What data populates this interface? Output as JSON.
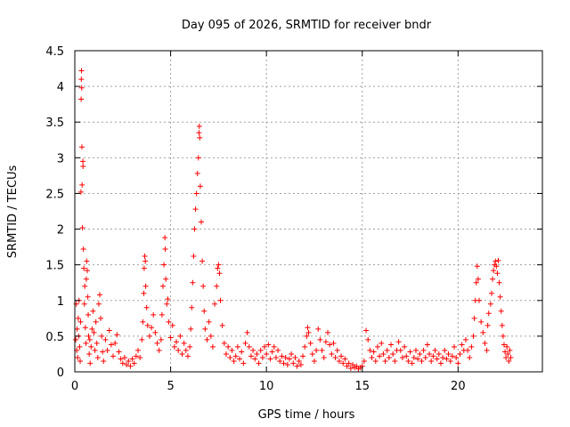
{
  "chart_data": {
    "type": "scatter",
    "title": "Day 095 of 2026, SRMTID for receiver bndr",
    "xlabel": "GPS time / hours",
    "ylabel": "SRMTID / TECUs",
    "xlim": [
      0,
      24.4
    ],
    "ylim": [
      0,
      4.5
    ],
    "xticks": [
      0,
      5,
      10,
      15,
      20
    ],
    "xtick_labels": [
      "0",
      "5",
      "10",
      "15",
      "20"
    ],
    "yticks": [
      0,
      0.5,
      1,
      1.5,
      2,
      2.5,
      3,
      3.5,
      4,
      4.5
    ],
    "ytick_labels": [
      "0",
      "0.5",
      "1",
      "1.5",
      "2",
      "2.5",
      "3",
      "3.5",
      "4",
      "4.5"
    ],
    "grid": true,
    "marker": "+",
    "color": "#ff0000",
    "series": [
      {
        "name": "SRMTID",
        "points": [
          [
            0.05,
            0.45
          ],
          [
            0.08,
            0.95
          ],
          [
            0.1,
            0.3
          ],
          [
            0.12,
            0.6
          ],
          [
            0.15,
            0.2
          ],
          [
            0.18,
            0.75
          ],
          [
            0.2,
            0.5
          ],
          [
            0.22,
            1.0
          ],
          [
            0.25,
            0.35
          ],
          [
            0.28,
            0.15
          ],
          [
            0.3,
            0.7
          ],
          [
            0.32,
            2.52
          ],
          [
            0.33,
            3.82
          ],
          [
            0.34,
            4.1
          ],
          [
            0.35,
            4.22
          ],
          [
            0.36,
            3.98
          ],
          [
            0.37,
            3.15
          ],
          [
            0.38,
            2.62
          ],
          [
            0.4,
            2.02
          ],
          [
            0.42,
            2.95
          ],
          [
            0.43,
            2.88
          ],
          [
            0.45,
            1.72
          ],
          [
            0.47,
            1.45
          ],
          [
            0.5,
            0.95
          ],
          [
            0.52,
            1.2
          ],
          [
            0.55,
            0.62
          ],
          [
            0.58,
            0.4
          ],
          [
            0.6,
            1.3
          ],
          [
            0.62,
            1.55
          ],
          [
            0.65,
            1.42
          ],
          [
            0.68,
            1.05
          ],
          [
            0.7,
            0.8
          ],
          [
            0.72,
            0.5
          ],
          [
            0.75,
            0.25
          ],
          [
            0.78,
            0.45
          ],
          [
            0.8,
            0.12
          ],
          [
            0.85,
            0.35
          ],
          [
            0.9,
            0.6
          ],
          [
            0.95,
            0.85
          ],
          [
            1.0,
            0.55
          ],
          [
            1.05,
            0.3
          ],
          [
            1.1,
            0.7
          ],
          [
            1.15,
            0.4
          ],
          [
            1.2,
            0.2
          ],
          [
            1.25,
            0.95
          ],
          [
            1.3,
            1.08
          ],
          [
            1.35,
            0.75
          ],
          [
            1.4,
            0.5
          ],
          [
            1.45,
            0.28
          ],
          [
            1.5,
            0.15
          ],
          [
            1.6,
            0.45
          ],
          [
            1.7,
            0.3
          ],
          [
            1.8,
            0.58
          ],
          [
            1.9,
            0.38
          ],
          [
            2.0,
            0.22
          ],
          [
            2.1,
            0.4
          ],
          [
            2.2,
            0.52
          ],
          [
            2.3,
            0.28
          ],
          [
            2.4,
            0.18
          ],
          [
            2.5,
            0.12
          ],
          [
            2.6,
            0.2
          ],
          [
            2.7,
            0.1
          ],
          [
            2.8,
            0.15
          ],
          [
            2.9,
            0.08
          ],
          [
            3.0,
            0.18
          ],
          [
            3.1,
            0.12
          ],
          [
            3.2,
            0.22
          ],
          [
            3.3,
            0.3
          ],
          [
            3.4,
            0.2
          ],
          [
            3.5,
            0.45
          ],
          [
            3.55,
            0.7
          ],
          [
            3.6,
            1.1
          ],
          [
            3.62,
            1.45
          ],
          [
            3.65,
            1.62
          ],
          [
            3.68,
            1.55
          ],
          [
            3.7,
            1.2
          ],
          [
            3.75,
            0.9
          ],
          [
            3.8,
            0.65
          ],
          [
            3.9,
            0.5
          ],
          [
            4.0,
            0.62
          ],
          [
            4.1,
            0.8
          ],
          [
            4.2,
            0.55
          ],
          [
            4.3,
            0.4
          ],
          [
            4.4,
            0.3
          ],
          [
            4.5,
            0.45
          ],
          [
            4.55,
            0.8
          ],
          [
            4.6,
            1.2
          ],
          [
            4.65,
            1.5
          ],
          [
            4.7,
            1.88
          ],
          [
            4.72,
            1.72
          ],
          [
            4.75,
            1.3
          ],
          [
            4.8,
            0.95
          ],
          [
            4.85,
            1.02
          ],
          [
            4.9,
            0.7
          ],
          [
            5.0,
            0.48
          ],
          [
            5.1,
            0.65
          ],
          [
            5.2,
            0.35
          ],
          [
            5.3,
            0.42
          ],
          [
            5.4,
            0.3
          ],
          [
            5.5,
            0.5
          ],
          [
            5.6,
            0.25
          ],
          [
            5.7,
            0.4
          ],
          [
            5.8,
            0.3
          ],
          [
            5.9,
            0.22
          ],
          [
            6.0,
            0.35
          ],
          [
            6.05,
            0.6
          ],
          [
            6.1,
            0.9
          ],
          [
            6.15,
            1.25
          ],
          [
            6.2,
            1.62
          ],
          [
            6.25,
            2.0
          ],
          [
            6.3,
            2.28
          ],
          [
            6.35,
            2.5
          ],
          [
            6.4,
            2.78
          ],
          [
            6.45,
            3.0
          ],
          [
            6.48,
            3.35
          ],
          [
            6.5,
            3.44
          ],
          [
            6.52,
            3.28
          ],
          [
            6.55,
            2.6
          ],
          [
            6.6,
            2.1
          ],
          [
            6.65,
            1.55
          ],
          [
            6.7,
            1.2
          ],
          [
            6.75,
            0.85
          ],
          [
            6.8,
            0.6
          ],
          [
            6.9,
            0.45
          ],
          [
            7.0,
            0.7
          ],
          [
            7.1,
            0.5
          ],
          [
            7.2,
            0.35
          ],
          [
            7.3,
            0.95
          ],
          [
            7.4,
            1.2
          ],
          [
            7.45,
            1.45
          ],
          [
            7.5,
            1.5
          ],
          [
            7.55,
            1.38
          ],
          [
            7.6,
            1.0
          ],
          [
            7.7,
            0.65
          ],
          [
            7.8,
            0.4
          ],
          [
            7.9,
            0.25
          ],
          [
            8.0,
            0.35
          ],
          [
            8.1,
            0.2
          ],
          [
            8.2,
            0.3
          ],
          [
            8.3,
            0.15
          ],
          [
            8.4,
            0.22
          ],
          [
            8.5,
            0.35
          ],
          [
            8.6,
            0.18
          ],
          [
            8.7,
            0.28
          ],
          [
            8.8,
            0.12
          ],
          [
            8.9,
            0.4
          ],
          [
            9.0,
            0.55
          ],
          [
            9.1,
            0.35
          ],
          [
            9.2,
            0.22
          ],
          [
            9.3,
            0.3
          ],
          [
            9.4,
            0.18
          ],
          [
            9.5,
            0.25
          ],
          [
            9.6,
            0.12
          ],
          [
            9.7,
            0.3
          ],
          [
            9.8,
            0.2
          ],
          [
            9.9,
            0.35
          ],
          [
            10.0,
            0.25
          ],
          [
            10.1,
            0.38
          ],
          [
            10.2,
            0.18
          ],
          [
            10.3,
            0.28
          ],
          [
            10.4,
            0.35
          ],
          [
            10.5,
            0.2
          ],
          [
            10.6,
            0.3
          ],
          [
            10.7,
            0.15
          ],
          [
            10.8,
            0.22
          ],
          [
            10.9,
            0.12
          ],
          [
            11.0,
            0.2
          ],
          [
            11.1,
            0.1
          ],
          [
            11.2,
            0.18
          ],
          [
            11.3,
            0.25
          ],
          [
            11.4,
            0.12
          ],
          [
            11.5,
            0.2
          ],
          [
            11.6,
            0.08
          ],
          [
            11.7,
            0.15
          ],
          [
            11.8,
            0.1
          ],
          [
            11.9,
            0.22
          ],
          [
            12.0,
            0.35
          ],
          [
            12.1,
            0.5
          ],
          [
            12.15,
            0.62
          ],
          [
            12.2,
            0.55
          ],
          [
            12.3,
            0.4
          ],
          [
            12.4,
            0.25
          ],
          [
            12.5,
            0.15
          ],
          [
            12.6,
            0.3
          ],
          [
            12.7,
            0.6
          ],
          [
            12.8,
            0.45
          ],
          [
            12.9,
            0.3
          ],
          [
            13.0,
            0.2
          ],
          [
            13.1,
            0.42
          ],
          [
            13.2,
            0.55
          ],
          [
            13.3,
            0.38
          ],
          [
            13.4,
            0.25
          ],
          [
            13.5,
            0.4
          ],
          [
            13.6,
            0.2
          ],
          [
            13.7,
            0.3
          ],
          [
            13.8,
            0.15
          ],
          [
            13.9,
            0.22
          ],
          [
            14.0,
            0.12
          ],
          [
            14.1,
            0.18
          ],
          [
            14.2,
            0.08
          ],
          [
            14.3,
            0.12
          ],
          [
            14.4,
            0.05
          ],
          [
            14.5,
            0.1
          ],
          [
            14.6,
            0.06
          ],
          [
            14.7,
            0.08
          ],
          [
            14.8,
            0.04
          ],
          [
            14.9,
            0.06
          ],
          [
            15.0,
            0.08
          ],
          [
            15.1,
            0.15
          ],
          [
            15.2,
            0.58
          ],
          [
            15.3,
            0.45
          ],
          [
            15.4,
            0.3
          ],
          [
            15.5,
            0.2
          ],
          [
            15.6,
            0.28
          ],
          [
            15.7,
            0.15
          ],
          [
            15.8,
            0.35
          ],
          [
            15.9,
            0.22
          ],
          [
            16.0,
            0.4
          ],
          [
            16.1,
            0.25
          ],
          [
            16.2,
            0.15
          ],
          [
            16.3,
            0.3
          ],
          [
            16.4,
            0.2
          ],
          [
            16.5,
            0.38
          ],
          [
            16.6,
            0.25
          ],
          [
            16.7,
            0.15
          ],
          [
            16.8,
            0.3
          ],
          [
            16.9,
            0.42
          ],
          [
            17.0,
            0.3
          ],
          [
            17.1,
            0.2
          ],
          [
            17.2,
            0.35
          ],
          [
            17.3,
            0.22
          ],
          [
            17.4,
            0.15
          ],
          [
            17.5,
            0.28
          ],
          [
            17.6,
            0.12
          ],
          [
            17.7,
            0.2
          ],
          [
            17.8,
            0.3
          ],
          [
            17.9,
            0.18
          ],
          [
            18.0,
            0.25
          ],
          [
            18.1,
            0.15
          ],
          [
            18.2,
            0.3
          ],
          [
            18.3,
            0.2
          ],
          [
            18.4,
            0.38
          ],
          [
            18.5,
            0.25
          ],
          [
            18.6,
            0.15
          ],
          [
            18.7,
            0.22
          ],
          [
            18.8,
            0.3
          ],
          [
            18.9,
            0.18
          ],
          [
            19.0,
            0.25
          ],
          [
            19.1,
            0.12
          ],
          [
            19.2,
            0.2
          ],
          [
            19.3,
            0.3
          ],
          [
            19.4,
            0.18
          ],
          [
            19.5,
            0.25
          ],
          [
            19.6,
            0.15
          ],
          [
            19.7,
            0.22
          ],
          [
            19.8,
            0.35
          ],
          [
            19.9,
            0.2
          ],
          [
            20.0,
            0.12
          ],
          [
            20.1,
            0.25
          ],
          [
            20.2,
            0.38
          ],
          [
            20.3,
            0.3
          ],
          [
            20.4,
            0.45
          ],
          [
            20.5,
            0.3
          ],
          [
            20.6,
            0.2
          ],
          [
            20.7,
            0.35
          ],
          [
            20.8,
            0.5
          ],
          [
            20.85,
            0.75
          ],
          [
            20.9,
            1.0
          ],
          [
            20.95,
            1.25
          ],
          [
            21.0,
            1.48
          ],
          [
            21.05,
            1.3
          ],
          [
            21.1,
            1.0
          ],
          [
            21.2,
            0.7
          ],
          [
            21.3,
            0.55
          ],
          [
            21.4,
            0.4
          ],
          [
            21.5,
            0.3
          ],
          [
            21.55,
            0.65
          ],
          [
            21.6,
            0.82
          ],
          [
            21.7,
            0.95
          ],
          [
            21.75,
            1.1
          ],
          [
            21.8,
            1.3
          ],
          [
            21.85,
            1.42
          ],
          [
            21.9,
            1.5
          ],
          [
            21.95,
            1.55
          ],
          [
            22.0,
            1.48
          ],
          [
            22.05,
            1.38
          ],
          [
            22.1,
            1.56
          ],
          [
            22.15,
            1.25
          ],
          [
            22.2,
            1.05
          ],
          [
            22.25,
            0.85
          ],
          [
            22.3,
            0.65
          ],
          [
            22.35,
            0.5
          ],
          [
            22.4,
            0.38
          ],
          [
            22.45,
            0.28
          ],
          [
            22.5,
            0.2
          ],
          [
            22.55,
            0.35
          ],
          [
            22.6,
            0.25
          ],
          [
            22.65,
            0.15
          ],
          [
            22.7,
            0.3
          ],
          [
            22.75,
            0.2
          ]
        ]
      }
    ]
  }
}
